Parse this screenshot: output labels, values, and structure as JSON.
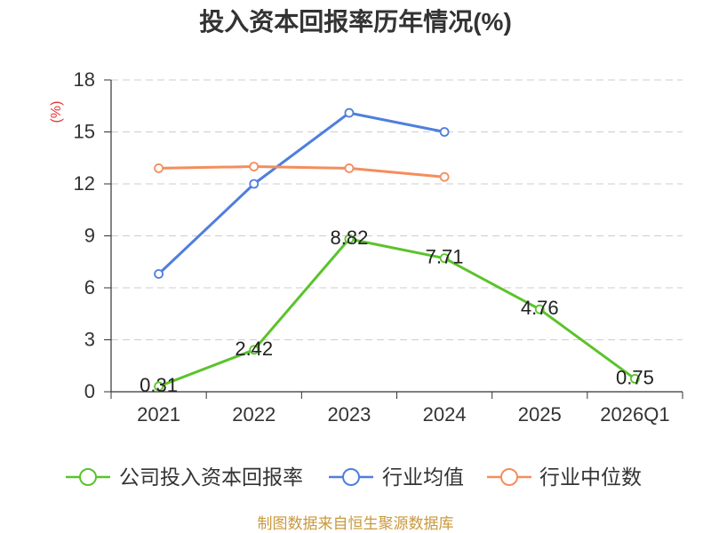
{
  "chart_data": {
    "type": "line",
    "title": "投入资本回报率历年情况(%)",
    "xlabel": "",
    "ylabel": "(%)",
    "categories": [
      "2021",
      "2022",
      "2023",
      "2024",
      "2025",
      "2026Q1"
    ],
    "ylim": [
      0,
      18
    ],
    "yticks": [
      0,
      3,
      6,
      9,
      12,
      15,
      18
    ],
    "grid": true,
    "legend_position": "bottom",
    "series": [
      {
        "name": "公司投入资本回报率",
        "color": "#5bc32b",
        "values": [
          0.31,
          2.42,
          8.82,
          7.71,
          4.76,
          0.75
        ],
        "show_labels": true
      },
      {
        "name": "行业均值",
        "color": "#4e7fdd",
        "values": [
          6.8,
          12.0,
          16.1,
          15.0,
          null,
          null
        ],
        "show_labels": false
      },
      {
        "name": "行业中位数",
        "color": "#f58d5d",
        "values": [
          12.9,
          13.0,
          12.9,
          12.4,
          null,
          null
        ],
        "show_labels": false
      }
    ]
  },
  "colors": {
    "ylabel": "#e23a3a",
    "footer": "#c9993e",
    "grid": "#cccccc",
    "axis": "#333333"
  },
  "footer": {
    "source_text": "制图数据来自恒生聚源数据库"
  }
}
